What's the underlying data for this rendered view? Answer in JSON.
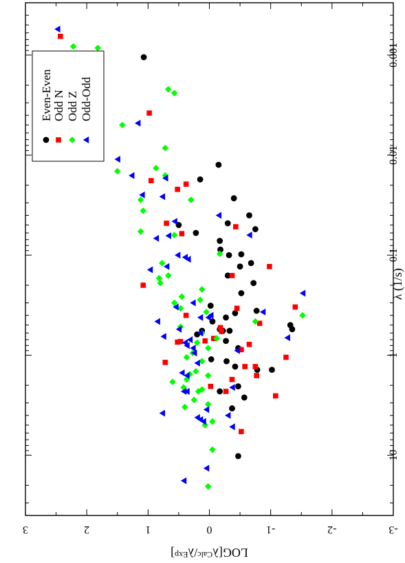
{
  "chart_data": {
    "type": "scatter",
    "title": "",
    "xlabel": "λ (1/s)",
    "ylabel_parts": [
      "LOG[λ",
      "Calc",
      "/λ",
      "Exp",
      "]"
    ],
    "x_scale": "log",
    "xlim": [
      0.0003,
      40
    ],
    "ylim": [
      -3,
      3
    ],
    "x_ticks": [
      0.001,
      0.01,
      0.1,
      1,
      10
    ],
    "x_tick_labels": [
      "0.001",
      "0.01",
      "0.1",
      "1",
      "10"
    ],
    "y_ticks": [
      3,
      2,
      1,
      0,
      -1,
      -2,
      -3
    ],
    "y_tick_labels": [
      "3",
      "2",
      "1",
      "0",
      "-1",
      "-2",
      "-3"
    ],
    "orientation": "rotated-90-clockwise",
    "grid": false,
    "legend_position": "top-left (page)",
    "series": [
      {
        "name": "Even-Even",
        "marker": "circle",
        "color": "#000000",
        "points": [
          [
            10.2,
            -0.47
          ],
          [
            3.4,
            -0.37
          ],
          [
            2.65,
            -0.57
          ],
          [
            2.3,
            -0.17
          ],
          [
            2.05,
            -0.47
          ],
          [
            1.4,
            -0.78
          ],
          [
            1.4,
            -1.02
          ],
          [
            1.3,
            -0.42
          ],
          [
            1.15,
            -0.28
          ],
          [
            1.1,
            -0.03
          ],
          [
            0.85,
            -0.47
          ],
          [
            0.72,
            -0.27
          ],
          [
            0.62,
            0.2
          ],
          [
            0.57,
            0.12
          ],
          [
            0.57,
            -0.22
          ],
          [
            0.57,
            -0.33
          ],
          [
            0.55,
            -0.17
          ],
          [
            0.55,
            -1.35
          ],
          [
            0.5,
            -1.32
          ],
          [
            0.46,
            -0.05
          ],
          [
            0.42,
            -0.27
          ],
          [
            0.38,
            -0.42
          ],
          [
            0.36,
            -0.77
          ],
          [
            0.32,
            -0.02
          ],
          [
            0.24,
            -0.52
          ],
          [
            0.19,
            -0.72
          ],
          [
            0.16,
            -0.3
          ],
          [
            0.13,
            -0.5
          ],
          [
            0.12,
            -0.68
          ],
          [
            0.1,
            -0.32
          ],
          [
            0.098,
            -0.52
          ],
          [
            0.088,
            -0.18
          ],
          [
            0.072,
            -0.17
          ],
          [
            0.06,
            0.22
          ],
          [
            0.055,
            -0.75
          ],
          [
            0.05,
            0.5
          ],
          [
            0.048,
            -0.3
          ],
          [
            0.04,
            -0.65
          ],
          [
            0.027,
            -0.4
          ],
          [
            0.0175,
            0.15
          ],
          [
            0.0125,
            -0.15
          ],
          [
            0.00105,
            1.07
          ]
        ]
      },
      {
        "name": "Odd N",
        "marker": "square",
        "color": "#ff0000",
        "points": [
          [
            5.8,
            -0.52
          ],
          [
            2.55,
            -1.08
          ],
          [
            2.3,
            -0.27
          ],
          [
            2.05,
            -0.02
          ],
          [
            1.75,
            -0.37
          ],
          [
            1.6,
            -0.77
          ],
          [
            1.3,
            -0.75
          ],
          [
            1.3,
            -0.58
          ],
          [
            1.18,
            0.72
          ],
          [
            1.05,
            -1.25
          ],
          [
            0.88,
            -0.52
          ],
          [
            0.78,
            -0.65
          ],
          [
            0.74,
            0.52
          ],
          [
            0.73,
            0.47
          ],
          [
            0.72,
            0.07
          ],
          [
            0.68,
            -0.07
          ],
          [
            0.58,
            -0.2
          ],
          [
            0.53,
            -0.18
          ],
          [
            0.48,
            -0.82
          ],
          [
            0.4,
            0.38
          ],
          [
            0.34,
            -0.45
          ],
          [
            0.33,
            -1.4
          ],
          [
            0.2,
            1.08
          ],
          [
            0.16,
            -0.37
          ],
          [
            0.13,
            -0.98
          ],
          [
            0.061,
            0.45
          ],
          [
            0.052,
            -0.43
          ],
          [
            0.048,
            0.7
          ],
          [
            0.022,
            0.52
          ],
          [
            0.0195,
            0.38
          ],
          [
            0.018,
            0.95
          ],
          [
            0.0038,
            0.98
          ],
          [
            0.00065,
            2.43
          ]
        ]
      },
      {
        "name": "Odd Z",
        "marker": "diamond",
        "color": "#00ff00",
        "points": [
          [
            20.5,
            0.02
          ],
          [
            8.8,
            -0.05
          ],
          [
            5.0,
            0.07
          ],
          [
            4.6,
            -0.05
          ],
          [
            3.3,
            0.4
          ],
          [
            3.1,
            0.02
          ],
          [
            2.8,
            0.25
          ],
          [
            2.3,
            0.18
          ],
          [
            2.2,
            0.12
          ],
          [
            2.1,
            0.42
          ],
          [
            1.85,
            0.6
          ],
          [
            1.75,
            0.37
          ],
          [
            1.6,
            0.02
          ],
          [
            1.55,
            0.32
          ],
          [
            1.45,
            0.22
          ],
          [
            1.15,
            0.12
          ],
          [
            1.05,
            0.37
          ],
          [
            0.95,
            0.27
          ],
          [
            0.85,
            0.02
          ],
          [
            0.75,
            0.2
          ],
          [
            0.68,
            -0.12
          ],
          [
            0.6,
            0.12
          ],
          [
            0.52,
            0.47
          ],
          [
            0.46,
            -0.75
          ],
          [
            0.4,
            -1.52
          ],
          [
            0.37,
            0.05
          ],
          [
            0.34,
            0.47
          ],
          [
            0.3,
            0.57
          ],
          [
            0.28,
            0.15
          ],
          [
            0.26,
            0.45
          ],
          [
            0.22,
            0.12
          ],
          [
            0.19,
            0.8
          ],
          [
            0.17,
            0.82
          ],
          [
            0.16,
            0.67
          ],
          [
            0.12,
            0.77
          ],
          [
            0.097,
            -0.17
          ],
          [
            0.063,
            0.57
          ],
          [
            0.058,
            1.12
          ],
          [
            0.036,
            1.08
          ],
          [
            0.028,
            1.12
          ],
          [
            0.028,
            0.3
          ],
          [
            0.016,
            0.72
          ],
          [
            0.0145,
            1.5
          ],
          [
            0.0135,
            0.87
          ],
          [
            0.0085,
            0.72
          ],
          [
            0.005,
            1.42
          ],
          [
            0.0024,
            0.57
          ],
          [
            0.0022,
            0.67
          ],
          [
            0.00085,
            1.82
          ],
          [
            0.00082,
            2.22
          ]
        ]
      },
      {
        "name": "Odd-Odd",
        "marker": "triangle",
        "color": "#0000ff",
        "points": [
          [
            18.0,
            0.42
          ],
          [
            13.5,
            0.05
          ],
          [
            5.2,
            -0.37
          ],
          [
            4.6,
            0.1
          ],
          [
            4.4,
            0.15
          ],
          [
            4.2,
            0.2
          ],
          [
            4.0,
            -0.3
          ],
          [
            3.8,
            0.77
          ],
          [
            3.5,
            0.05
          ],
          [
            2.3,
            0.42
          ],
          [
            2.3,
            0.37
          ],
          [
            2.1,
            -0.37
          ],
          [
            1.6,
            0.37
          ],
          [
            1.5,
            0.45
          ],
          [
            1.2,
            0.2
          ],
          [
            0.95,
            0.25
          ],
          [
            0.9,
            -0.45
          ],
          [
            0.85,
            0.27
          ],
          [
            0.8,
            0.37
          ],
          [
            0.75,
            0.4
          ],
          [
            0.7,
            0.32
          ],
          [
            0.67,
            -1.27
          ],
          [
            0.65,
            0.75
          ],
          [
            0.6,
            0.15
          ],
          [
            0.55,
            0.5
          ],
          [
            0.46,
            0.85
          ],
          [
            0.42,
            0.02
          ],
          [
            0.42,
            0.15
          ],
          [
            0.4,
            -0.02
          ],
          [
            0.37,
            -0.87
          ],
          [
            0.33,
            0.55
          ],
          [
            0.3,
            0.27
          ],
          [
            0.24,
            -1.52
          ],
          [
            0.14,
            0.97
          ],
          [
            0.13,
            0.7
          ],
          [
            0.11,
            0.35
          ],
          [
            0.105,
            0.4
          ],
          [
            0.1,
            0.52
          ],
          [
            0.068,
            0.87
          ],
          [
            0.064,
            0.67
          ],
          [
            0.063,
            -0.65
          ],
          [
            0.046,
            0.57
          ],
          [
            0.04,
            -0.15
          ],
          [
            0.026,
            0.77
          ],
          [
            0.025,
            1.1
          ],
          [
            0.017,
            0.72
          ],
          [
            0.016,
            1.27
          ],
          [
            0.011,
            1.5
          ],
          [
            0.0048,
            1.17
          ],
          [
            0.00055,
            2.48
          ]
        ]
      }
    ]
  }
}
